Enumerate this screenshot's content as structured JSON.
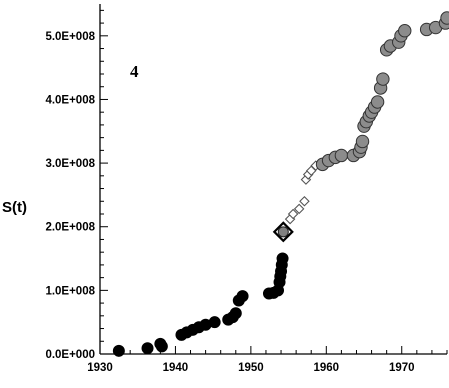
{
  "chart_data": {
    "type": "scatter",
    "title": "",
    "panel_label": "4",
    "xlabel": "",
    "ylabel": "S(t)",
    "xlim": [
      1930,
      1976
    ],
    "ylim": [
      0,
      550000000
    ],
    "grid": false,
    "legend": "none",
    "x_ticks": [
      1930,
      1940,
      1950,
      1960,
      1970
    ],
    "x_tick_labels": [
      "1930",
      "1940",
      "1950",
      "1960",
      "1970"
    ],
    "y_ticks": [
      0,
      100000000,
      200000000,
      300000000,
      400000000,
      500000000
    ],
    "y_tick_labels": [
      "0.0E+000",
      "1.0E+008",
      "2.0E+008",
      "3.0E+008",
      "4.0E+008",
      "5.0E+008"
    ],
    "colors": {
      "black_series": "#000000",
      "grey_series": "#8c8c8c",
      "open_series_stroke": "#555555",
      "highlight_fill": "#808080"
    },
    "series": [
      {
        "marker": "circle-black",
        "points": [
          [
            1932.5,
            5000000
          ],
          [
            1936.3,
            9000000
          ],
          [
            1938.0,
            16000000
          ],
          [
            1938.2,
            12000000
          ],
          [
            1940.8,
            30000000
          ],
          [
            1941.5,
            34000000
          ],
          [
            1942.3,
            38000000
          ],
          [
            1943.1,
            42000000
          ],
          [
            1944.0,
            46000000
          ],
          [
            1945.2,
            50000000
          ],
          [
            1947.0,
            54000000
          ],
          [
            1947.6,
            58000000
          ],
          [
            1948.0,
            64000000
          ],
          [
            1948.4,
            84000000
          ],
          [
            1948.9,
            91000000
          ],
          [
            1952.4,
            95000000
          ],
          [
            1953.0,
            96000000
          ],
          [
            1953.6,
            100000000
          ],
          [
            1953.8,
            113000000
          ],
          [
            1953.9,
            122000000
          ],
          [
            1954.0,
            130000000
          ],
          [
            1954.1,
            140000000
          ],
          [
            1954.2,
            150000000
          ]
        ]
      },
      {
        "marker": "diamond-highlight",
        "points": [
          [
            1954.3,
            192000000
          ]
        ]
      },
      {
        "marker": "diamond-open",
        "points": [
          [
            1955.2,
            212000000
          ],
          [
            1955.6,
            220000000
          ],
          [
            1956.4,
            228000000
          ],
          [
            1957.1,
            240000000
          ],
          [
            1957.3,
            274000000
          ],
          [
            1957.6,
            282000000
          ],
          [
            1958.0,
            288000000
          ],
          [
            1958.6,
            296000000
          ]
        ]
      },
      {
        "marker": "circle-grey",
        "points": [
          [
            1959.5,
            298000000
          ],
          [
            1960.3,
            304000000
          ],
          [
            1961.2,
            309000000
          ],
          [
            1962.0,
            312000000
          ],
          [
            1963.6,
            312000000
          ],
          [
            1964.4,
            318000000
          ],
          [
            1964.6,
            325000000
          ],
          [
            1964.8,
            334000000
          ],
          [
            1965.0,
            358000000
          ],
          [
            1965.3,
            365000000
          ],
          [
            1965.7,
            374000000
          ],
          [
            1966.0,
            380000000
          ],
          [
            1966.4,
            388000000
          ],
          [
            1966.8,
            396000000
          ],
          [
            1967.2,
            418000000
          ],
          [
            1967.5,
            432000000
          ],
          [
            1968.0,
            478000000
          ],
          [
            1968.5,
            484000000
          ],
          [
            1969.6,
            490000000
          ],
          [
            1969.9,
            500000000
          ],
          [
            1970.4,
            508000000
          ],
          [
            1973.3,
            510000000
          ],
          [
            1974.5,
            513000000
          ],
          [
            1975.8,
            520000000
          ],
          [
            1976.0,
            528000000
          ]
        ]
      }
    ]
  }
}
